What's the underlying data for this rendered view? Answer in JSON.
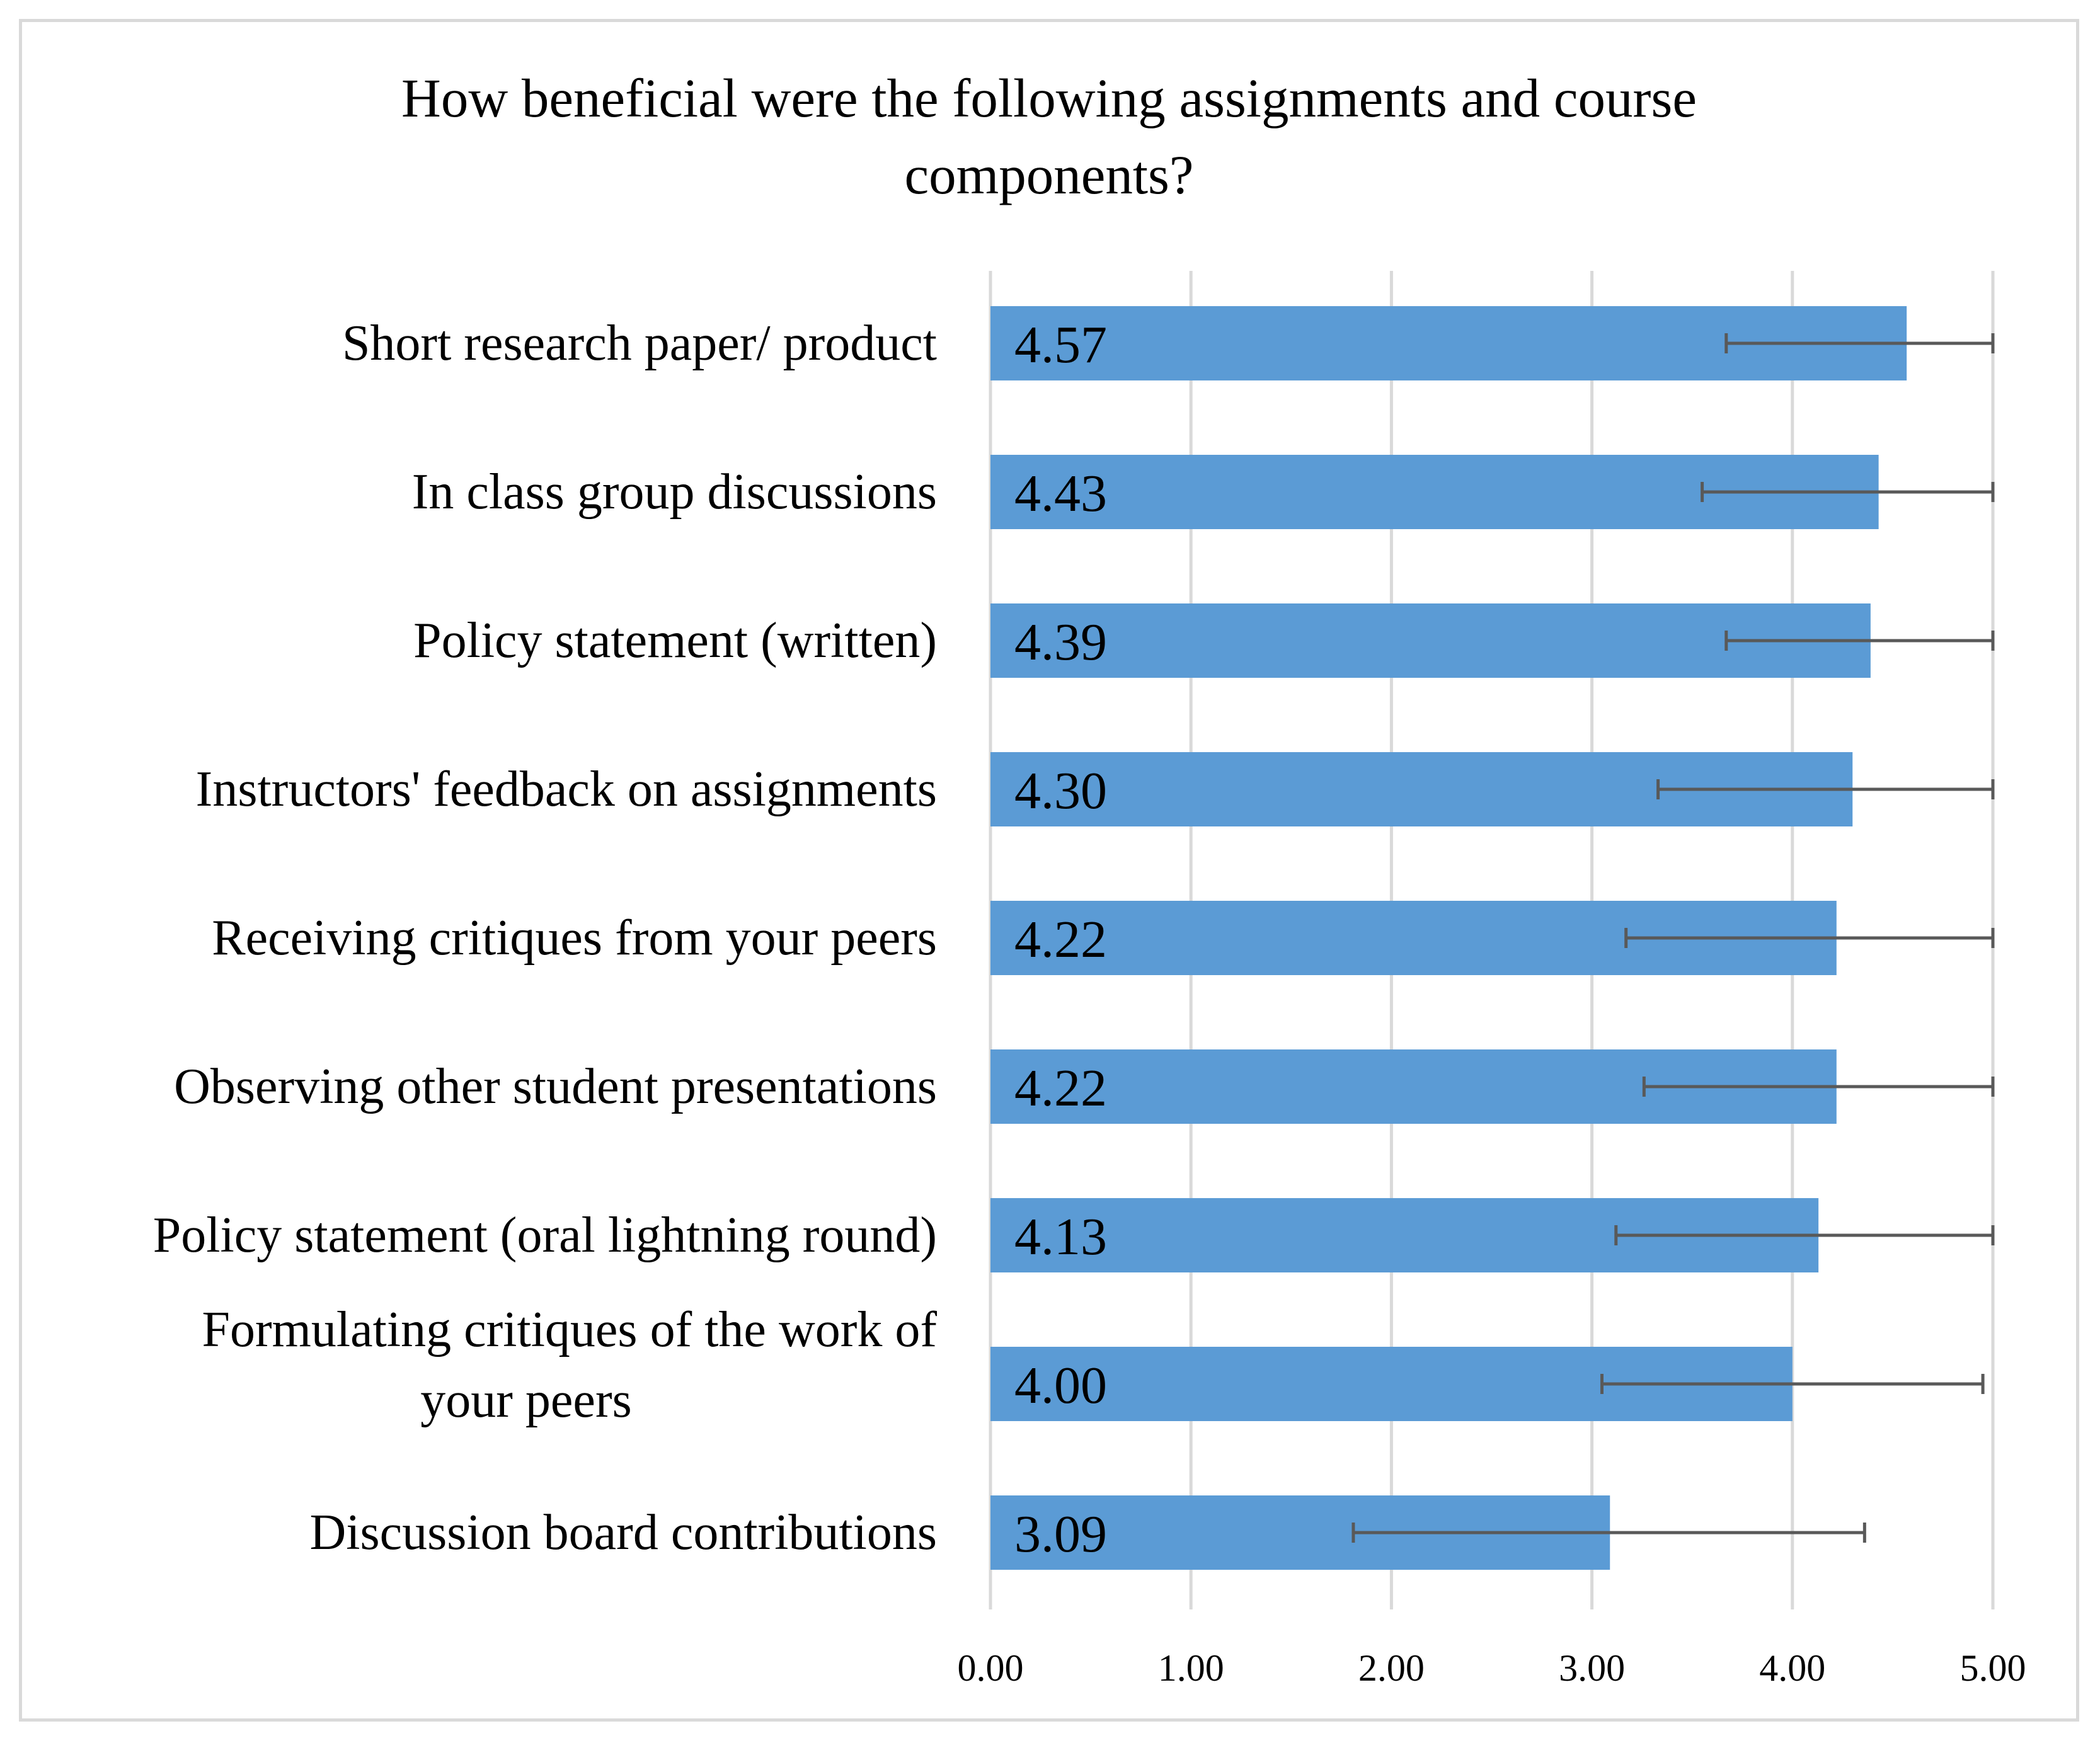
{
  "chart_data": {
    "type": "bar",
    "orientation": "horizontal",
    "title": "How beneficial were the following assignments and course components?",
    "xlabel": "",
    "ylabel": "",
    "xlim": [
      0,
      5
    ],
    "ticks": [
      0,
      1,
      2,
      3,
      4,
      5
    ],
    "tick_labels": [
      "0.00",
      "1.00",
      "2.00",
      "3.00",
      "4.00",
      "5.00"
    ],
    "grid": true,
    "bar_color": "#5b9bd5",
    "error_bar_color": "#595959",
    "categories": [
      "Short research paper/ product",
      "In class group discussions",
      "Policy statement (written)",
      "Instructors' feedback on assignments",
      "Receiving critiques from your peers",
      "Observing other student presentations",
      "Policy statement (oral lightning round)",
      "Formulating critiques of the work of your peers",
      "Discussion board contributions"
    ],
    "category_lines": [
      [
        "Short research paper/ product"
      ],
      [
        "In class group discussions"
      ],
      [
        "Policy statement (written)"
      ],
      [
        "Instructors' feedback on assignments"
      ],
      [
        "Receiving critiques from your peers"
      ],
      [
        "Observing other student presentations"
      ],
      [
        "Policy statement (oral lightning round)"
      ],
      [
        "Formulating critiques of the work of",
        "your peers"
      ],
      [
        "Discussion board contributions"
      ]
    ],
    "values": [
      4.57,
      4.43,
      4.39,
      4.3,
      4.22,
      4.22,
      4.13,
      4.0,
      3.09
    ],
    "value_labels": [
      "4.57",
      "4.43",
      "4.39",
      "4.30",
      "4.22",
      "4.22",
      "4.13",
      "4.00",
      "3.09"
    ],
    "error_low": [
      3.67,
      3.55,
      3.67,
      3.33,
      3.17,
      3.26,
      3.12,
      3.05,
      1.81
    ],
    "error_high": [
      5.0,
      5.0,
      5.0,
      5.0,
      5.0,
      5.0,
      5.0,
      4.95,
      4.36
    ]
  }
}
